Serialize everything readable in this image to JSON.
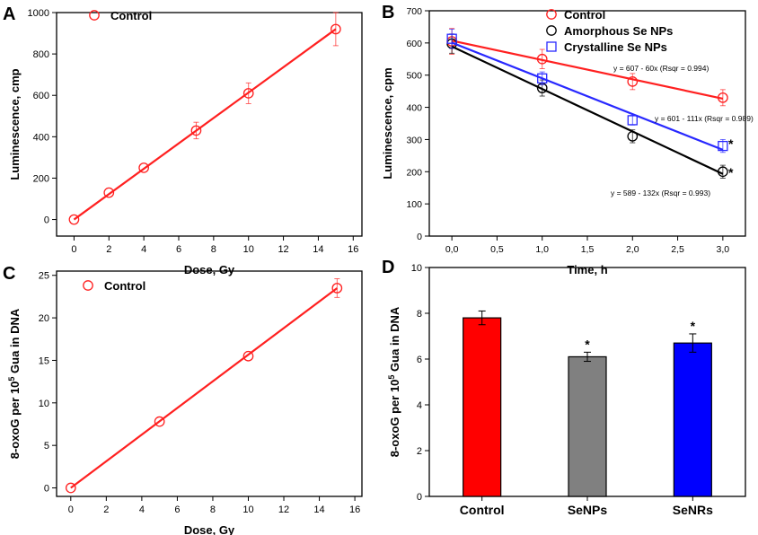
{
  "chart_data": [
    {
      "id": "A",
      "type": "scatter",
      "panel_label": "A",
      "xlabel": "Dose, Gy",
      "ylabel": "Luminescence, cmp",
      "xlim": [
        -1,
        16.5
      ],
      "ylim": [
        -80,
        1000
      ],
      "xticks": [
        0,
        2,
        4,
        6,
        8,
        10,
        12,
        14,
        16
      ],
      "yticks": [
        0,
        200,
        400,
        600,
        800,
        1000
      ],
      "tick_labels_x": [
        "0",
        "2",
        "4",
        "6",
        "8",
        "10",
        "12",
        "14",
        "16"
      ],
      "tick_labels_y": [
        "0",
        "200",
        "400",
        "600",
        "800",
        "1000"
      ],
      "series": [
        {
          "name": "Control",
          "color": "#ff2020",
          "marker": "circle",
          "x": [
            0,
            2,
            4,
            7,
            10,
            15
          ],
          "y": [
            0,
            130,
            250,
            430,
            610,
            920
          ],
          "err": [
            0,
            0,
            0,
            40,
            50,
            80
          ],
          "fit": [
            [
              0,
              0
            ],
            [
              15,
              920
            ]
          ]
        }
      ],
      "legend": [
        "Control"
      ]
    },
    {
      "id": "B",
      "type": "scatter",
      "panel_label": "B",
      "xlabel": "Time, h",
      "ylabel": "Luminescence, cpm",
      "xlim": [
        -0.25,
        3.25
      ],
      "ylim": [
        0,
        700
      ],
      "xticks": [
        0,
        0.5,
        1,
        1.5,
        2,
        2.5,
        3
      ],
      "yticks": [
        0,
        100,
        200,
        300,
        400,
        500,
        600,
        700
      ],
      "tick_labels_x": [
        "0,0",
        "0,5",
        "1,0",
        "1,5",
        "2,0",
        "2,5",
        "3,0"
      ],
      "tick_labels_y": [
        "0",
        "100",
        "200",
        "300",
        "400",
        "500",
        "600",
        "700"
      ],
      "series": [
        {
          "name": "Control",
          "color": "#ff2020",
          "marker": "circle",
          "x": [
            0,
            1,
            2,
            3
          ],
          "y": [
            605,
            550,
            480,
            430
          ],
          "err": [
            40,
            30,
            25,
            25
          ],
          "fit": [
            [
              0,
              607
            ],
            [
              3,
              427
            ]
          ]
        },
        {
          "name": "Amorphous Se NPs",
          "color": "#000000",
          "marker": "circle",
          "x": [
            0,
            1,
            2,
            3
          ],
          "y": [
            598,
            460,
            310,
            200
          ],
          "err": [
            30,
            25,
            20,
            20
          ],
          "fit": [
            [
              0,
              589
            ],
            [
              3,
              193
            ]
          ]
        },
        {
          "name": "Crystalline Se NPs",
          "color": "#2828ff",
          "marker": "square",
          "x": [
            0,
            1,
            2,
            3
          ],
          "y": [
            613,
            490,
            360,
            280
          ],
          "err": [
            30,
            20,
            15,
            20
          ],
          "fit": [
            [
              0,
              601
            ],
            [
              3,
              268
            ]
          ]
        }
      ],
      "legend": [
        "Control",
        "Amorphous Se NPs",
        "Crystalline Se NPs"
      ],
      "annotations": [
        "y = 607 - 60x (Rsqr = 0.994)",
        "y = 601 - 111x (Rsqr = 0.989)",
        "y = 589 - 132x (Rsqr = 0.993)"
      ],
      "stars": [
        "*",
        "*"
      ]
    },
    {
      "id": "C",
      "type": "scatter",
      "panel_label": "C",
      "xlabel": "Dose, Gy",
      "ylabel_parts": [
        "8-oxoG per 10",
        "5",
        " Gua in DNA"
      ],
      "xlim": [
        -0.8,
        16.4
      ],
      "ylim": [
        -1,
        25.5
      ],
      "xticks": [
        0,
        2,
        4,
        6,
        8,
        10,
        12,
        14,
        16
      ],
      "yticks": [
        0,
        5,
        10,
        15,
        20,
        25
      ],
      "tick_labels_x": [
        "0",
        "2",
        "4",
        "6",
        "8",
        "10",
        "12",
        "14",
        "16"
      ],
      "tick_labels_y": [
        "0",
        "5",
        "10",
        "15",
        "20",
        "25"
      ],
      "series": [
        {
          "name": "Control",
          "color": "#ff2020",
          "marker": "circle",
          "x": [
            0,
            5,
            10,
            15
          ],
          "y": [
            0,
            7.8,
            15.5,
            23.5
          ],
          "err": [
            0,
            0,
            0,
            1.1
          ],
          "fit": [
            [
              0,
              0
            ],
            [
              15,
              23.5
            ]
          ]
        }
      ],
      "legend": [
        "Control"
      ]
    },
    {
      "id": "D",
      "type": "bar",
      "panel_label": "D",
      "ylabel_parts": [
        "8-oxoG per 10",
        "5",
        " Gua in DNA"
      ],
      "ylim": [
        0,
        10
      ],
      "yticks": [
        0,
        2,
        4,
        6,
        8,
        10
      ],
      "tick_labels_y": [
        "0",
        "2",
        "4",
        "6",
        "8",
        "10"
      ],
      "categories": [
        "Control",
        "SeNPs",
        "SeNRs"
      ],
      "values": [
        7.8,
        6.1,
        6.7
      ],
      "errors": [
        0.3,
        0.2,
        0.4
      ],
      "colors": [
        "#ff0000",
        "#808080",
        "#0000ff"
      ],
      "stars": [
        "",
        "*",
        "*"
      ]
    }
  ]
}
